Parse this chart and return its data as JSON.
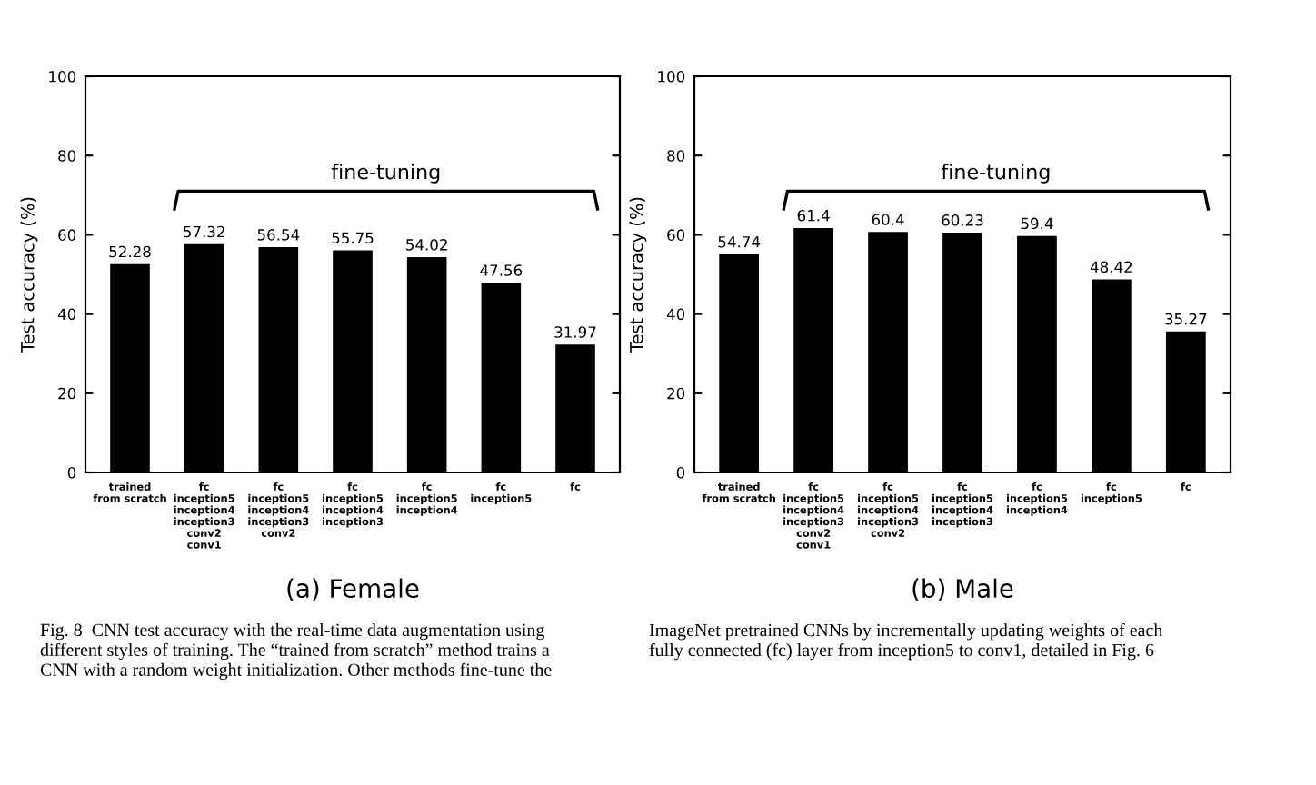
{
  "chart_data": [
    {
      "type": "bar",
      "title": "(a) Female",
      "ylabel": "Test accuracy (%)",
      "categories": [
        "trained\nfrom scratch",
        "fc\ninception5\ninception4\ninception3\nconv2\nconv1",
        "fc\ninception5\ninception4\ninception3\nconv2",
        "fc\ninception5\ninception4\ninception3",
        "fc\ninception5\ninception4",
        "fc\ninception5",
        "fc"
      ],
      "values": [
        52.28,
        57.32,
        56.54,
        55.75,
        54.02,
        47.56,
        31.97
      ],
      "color": "#000000",
      "value_labels": [
        "52.28",
        "57.32",
        "56.54",
        "55.75",
        "54.02",
        "47.56",
        "31.97"
      ],
      "ylim": [
        0,
        100
      ],
      "yticks": [
        0,
        20,
        40,
        60,
        80,
        100
      ],
      "grid": false,
      "legend": false,
      "annotations": [
        "fine-tuning",
        "Fig. 8  CNN test accuracy with the real-time data augmentation using\ndifferent styles of training. The “trained from scratch” method trains a\nCNN with a random weight initialization. Other methods fine-tune the"
      ]
    },
    {
      "type": "bar",
      "title": "(b) Male",
      "ylabel": "Test accuracy (%)",
      "categories": [
        "trained\nfrom scratch",
        "fc\ninception5\ninception4\ninception3\nconv2\nconv1",
        "fc\ninception5\ninception4\ninception3\nconv2",
        "fc\ninception5\ninception4\ninception3",
        "fc\ninception5\ninception4",
        "fc\ninception5",
        "fc"
      ],
      "values": [
        54.74,
        61.4,
        60.4,
        60.23,
        59.4,
        48.42,
        35.27
      ],
      "color": "#000000",
      "value_labels": [
        "54.74",
        "61.4",
        "60.4",
        "60.23",
        "59.4",
        "48.42",
        "35.27"
      ],
      "ylim": [
        0,
        100
      ],
      "yticks": [
        0,
        20,
        40,
        60,
        80,
        100
      ],
      "grid": false,
      "legend": false,
      "annotations": [
        "fine-tuning",
        "ImageNet pretrained CNNs by incrementally updating weights of each\nfully connected (fc) layer from inception5 to conv1, detailed in Fig. 6"
      ]
    }
  ]
}
